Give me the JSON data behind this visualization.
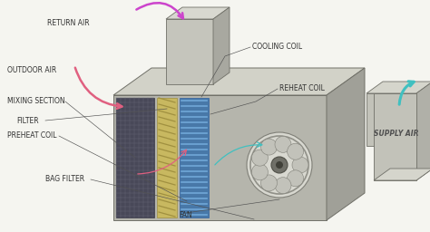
{
  "bg_color": "#f5f5f0",
  "labels": {
    "return_air": "RETURN AIR",
    "outdoor_air": "OUTDOOR AIR",
    "mixing_section": "MIXING SECTION",
    "filter": "FILTER",
    "preheat_coil": "PREHEAT COIL",
    "bag_filter": "BAG FILTER",
    "fan": "FAN",
    "cooling_coil": "COOLING COIL",
    "reheat_coil": "REHEAT COIL",
    "supply_air": "SUPPLY AIR"
  },
  "arrow_purple": "#cc44cc",
  "arrow_pink": "#e06080",
  "arrow_teal": "#40c0c0",
  "text_color": "#303030",
  "label_font_size": 5.5
}
